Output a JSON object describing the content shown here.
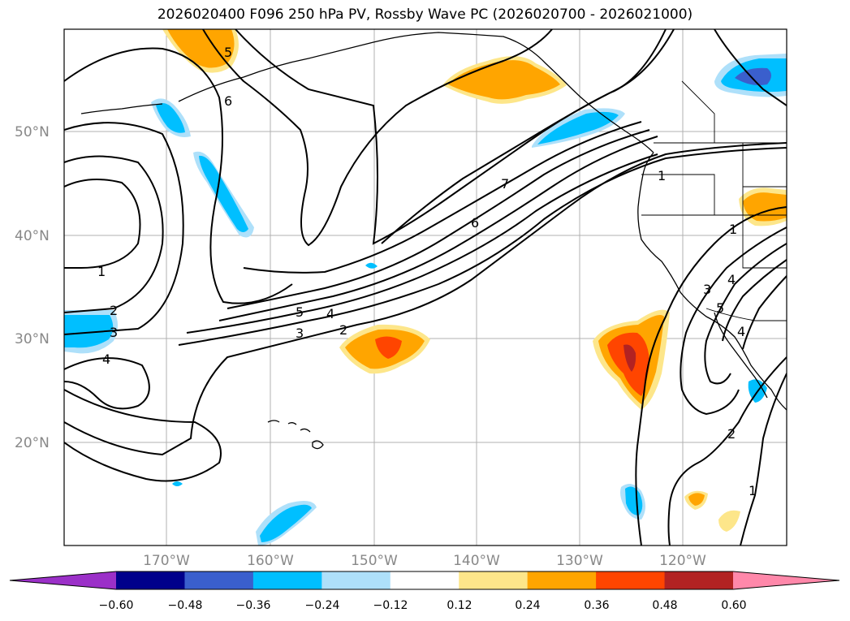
{
  "title": "2026020400 F096 250 hPa PV, Rossby Wave PC (2026020700 - 2026021000)",
  "map": {
    "lat_labels": [
      "50°N",
      "40°N",
      "30°N",
      "20°N"
    ],
    "lon_labels": [
      "170°W",
      "160°W",
      "150°W",
      "140°W",
      "130°W",
      "120°W"
    ],
    "contour_labels": [
      "5",
      "6",
      "7",
      "6",
      "1",
      "1",
      "2",
      "3",
      "4",
      "5",
      "4",
      "3",
      "2",
      "1",
      "3",
      "4",
      "5",
      "4",
      "2",
      "1"
    ]
  },
  "colorbar": {
    "ticks": [
      "−0.60",
      "−0.48",
      "−0.36",
      "−0.24",
      "−0.12",
      "0.12",
      "0.24",
      "0.36",
      "0.48",
      "0.60"
    ],
    "colors": [
      "#9b30c8",
      "#00008b",
      "#3a5fcd",
      "#00bfff",
      "#aee0fa",
      "#ffffff",
      "#fde68a",
      "#ffa500",
      "#ff4500",
      "#b22222",
      "#ff88aa"
    ]
  }
}
